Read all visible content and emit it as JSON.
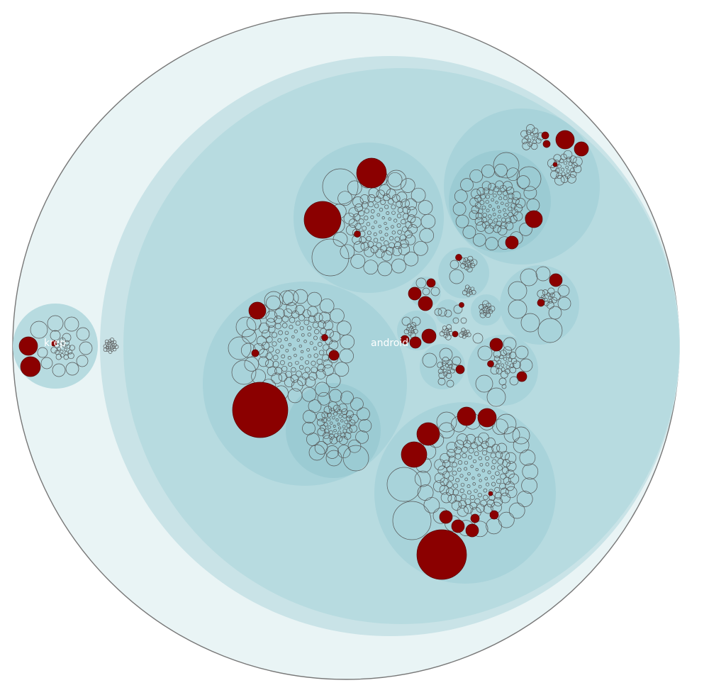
{
  "colors": {
    "background": "#ffffff",
    "level0": "#e9f4f5",
    "level1": "#c9e3e7",
    "level2": "#b7dbe0",
    "level3": "#a8d3da",
    "level4": "#9bcbd3",
    "leaf_stroke": "#555555",
    "highlight": "#8b0000",
    "label": "#ffffff"
  },
  "labels": {
    "left": "krep",
    "center": "android"
  },
  "shape": "circle-packing",
  "groups": [
    {
      "id": "krep",
      "leaves": 22,
      "highlighted": 3
    },
    {
      "id": "krep-small",
      "leaves": 26,
      "highlighted": 0
    },
    {
      "id": "top-center",
      "leaves": 120,
      "highlighted": 3
    },
    {
      "id": "top-right",
      "leaves": 110,
      "highlighted": 7
    },
    {
      "id": "left-large",
      "leaves": 130,
      "highlighted": 5
    },
    {
      "id": "left-sub",
      "leaves": 70,
      "highlighted": 0
    },
    {
      "id": "bottom",
      "leaves": 160,
      "highlighted": 14
    },
    {
      "id": "right-mid",
      "leaves": 20,
      "highlighted": 2
    },
    {
      "id": "mid-small-clusters",
      "leaves": 120,
      "highlighted": 12
    }
  ]
}
